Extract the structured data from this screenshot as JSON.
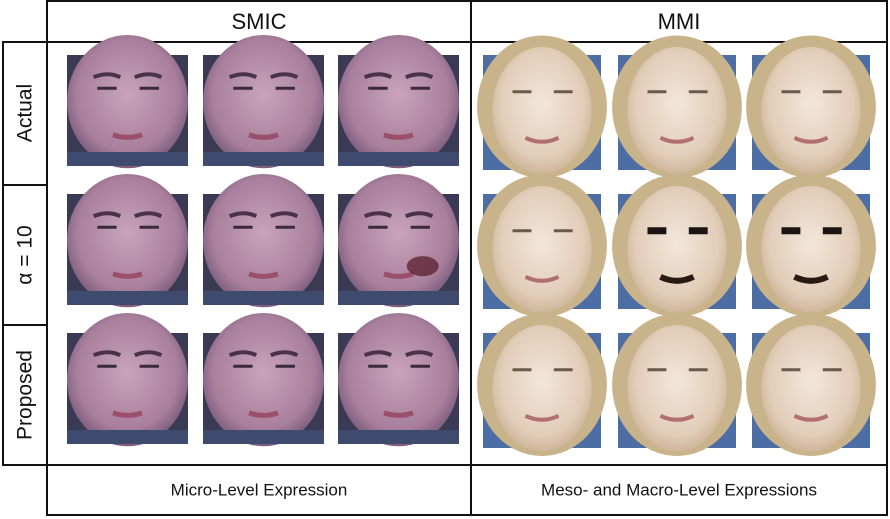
{
  "header": {
    "columns": [
      "SMIC",
      "MMI"
    ]
  },
  "rows": [
    "Actual",
    "α = 10",
    "Proposed"
  ],
  "footer": [
    "Micro-Level Expression",
    "Meso- and Macro-Level Expressions"
  ]
}
